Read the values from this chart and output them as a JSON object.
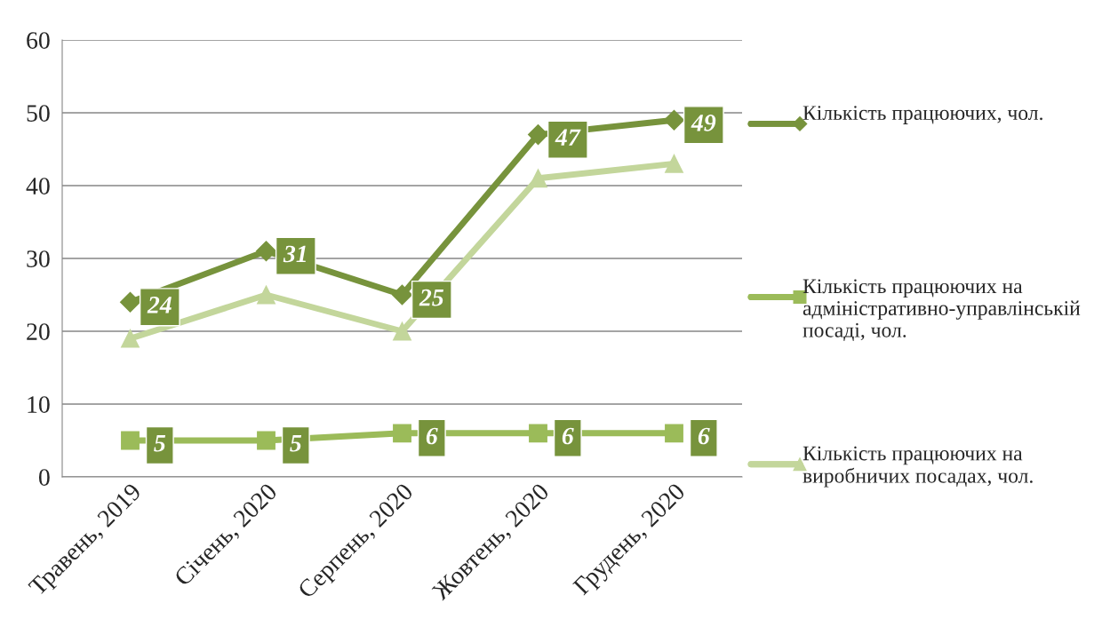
{
  "chart_data": {
    "type": "line",
    "categories": [
      "Травень, 2019",
      "Січень, 2020",
      "Серпень, 2020",
      "Жовтень, 2020",
      "Грудень, 2020"
    ],
    "series": [
      {
        "name": "Кількість працюючих, чол.",
        "color": "#77933c",
        "marker": "diamond",
        "values": [
          24,
          31,
          25,
          47,
          49
        ],
        "value_labels": [
          "24",
          "31",
          "25",
          "47",
          "49"
        ]
      },
      {
        "name": "Кількість працюючих на адміністративно-управлінській посаді, чол.",
        "color": "#9bbb59",
        "marker": "square",
        "values": [
          5,
          5,
          6,
          6,
          6
        ],
        "value_labels": [
          "5",
          "5",
          "6",
          "6",
          "6"
        ]
      },
      {
        "name": "Кількість працюючих на виробничих посадах, чол.",
        "color": "#c3d69b",
        "marker": "triangle",
        "values": [
          19,
          25,
          20,
          41,
          43
        ]
      }
    ],
    "ylim": [
      0,
      60
    ],
    "yticks": [
      0,
      10,
      20,
      30,
      40,
      50,
      60
    ],
    "grid": "y",
    "legend": "right",
    "line_style": "solid"
  }
}
